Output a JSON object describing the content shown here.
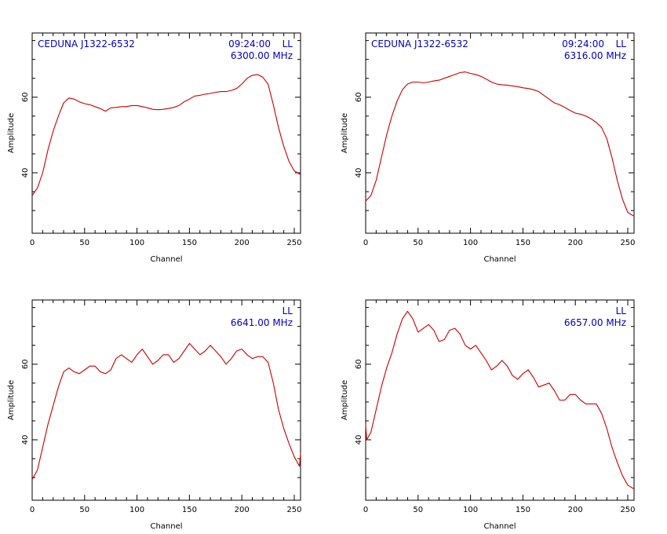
{
  "chart_data": [
    {
      "type": "line",
      "title_left": "CEDUNA J1322-6532",
      "title_time": "09:24:00",
      "polarization": "LL",
      "frequency": "6300.00 MHz",
      "xlabel": "Channel",
      "ylabel": "Amplitude",
      "xlim": [
        0,
        256
      ],
      "ylim": [
        24,
        77
      ],
      "x_ticks": [
        0,
        50,
        100,
        150,
        200,
        250
      ],
      "y_ticks": [
        40,
        60
      ],
      "series": [
        {
          "color": "#cc0000",
          "x": [
            0,
            5,
            10,
            15,
            20,
            25,
            30,
            35,
            40,
            45,
            50,
            55,
            60,
            65,
            70,
            75,
            80,
            85,
            90,
            95,
            100,
            105,
            110,
            115,
            120,
            125,
            130,
            135,
            140,
            145,
            150,
            155,
            160,
            165,
            170,
            175,
            180,
            185,
            190,
            195,
            200,
            205,
            210,
            215,
            220,
            225,
            230,
            235,
            240,
            245,
            250,
            256
          ],
          "y": [
            34,
            36,
            40,
            46,
            51,
            55,
            58.5,
            59.8,
            59.5,
            58.8,
            58.3,
            58,
            57.5,
            57,
            56.3,
            57.2,
            57.3,
            57.5,
            57.5,
            57.8,
            57.8,
            57.5,
            57.2,
            56.8,
            56.7,
            56.8,
            57,
            57.3,
            57.8,
            58.8,
            59.5,
            60.3,
            60.5,
            60.8,
            61,
            61.3,
            61.5,
            61.5,
            61.8,
            62.3,
            63.5,
            65,
            65.8,
            66,
            65.3,
            63.5,
            58,
            52,
            47,
            43,
            40.5,
            39.5
          ]
        }
      ]
    },
    {
      "type": "line",
      "title_left": "CEDUNA J1322-6532",
      "title_time": "09:24:00",
      "polarization": "LL",
      "frequency": "6316.00 MHz",
      "xlabel": "Channel",
      "ylabel": "Amplitude",
      "xlim": [
        0,
        256
      ],
      "ylim": [
        24,
        77
      ],
      "x_ticks": [
        0,
        50,
        100,
        150,
        200,
        250
      ],
      "y_ticks": [
        40,
        60
      ],
      "series": [
        {
          "color": "#cc0000",
          "x": [
            0,
            5,
            10,
            15,
            20,
            25,
            30,
            35,
            40,
            45,
            50,
            55,
            60,
            65,
            70,
            75,
            80,
            85,
            90,
            95,
            100,
            105,
            110,
            115,
            120,
            125,
            130,
            135,
            140,
            145,
            150,
            155,
            160,
            165,
            170,
            175,
            180,
            185,
            190,
            195,
            200,
            205,
            210,
            215,
            220,
            225,
            230,
            235,
            240,
            245,
            250,
            256
          ],
          "y": [
            32.5,
            34,
            38,
            44,
            50,
            55,
            59,
            62,
            63.5,
            64,
            64,
            63.8,
            64,
            64.3,
            64.5,
            65,
            65.5,
            66,
            66.5,
            66.7,
            66.3,
            66,
            65.5,
            64.8,
            64,
            63.5,
            63.3,
            63.2,
            63,
            62.8,
            62.5,
            62.3,
            62,
            61.5,
            60.5,
            59.5,
            58.5,
            58,
            57.3,
            56.5,
            55.8,
            55.5,
            55,
            54.3,
            53.3,
            52,
            49,
            44,
            38,
            33,
            29.5,
            28.5
          ]
        }
      ]
    },
    {
      "type": "line",
      "title_left": "",
      "title_time": "",
      "polarization": "LL",
      "frequency": "6641.00 MHz",
      "xlabel": "Channel",
      "ylabel": "Amplitude",
      "xlim": [
        0,
        256
      ],
      "ylim": [
        24,
        77
      ],
      "x_ticks": [
        0,
        50,
        100,
        150,
        200,
        250
      ],
      "y_ticks": [
        40,
        60
      ],
      "series": [
        {
          "color": "#cc0000",
          "x": [
            0,
            5,
            10,
            15,
            20,
            25,
            30,
            35,
            40,
            45,
            50,
            55,
            60,
            65,
            70,
            75,
            80,
            85,
            90,
            95,
            100,
            105,
            110,
            115,
            120,
            125,
            130,
            135,
            140,
            145,
            150,
            155,
            160,
            165,
            170,
            175,
            180,
            185,
            190,
            195,
            200,
            205,
            210,
            215,
            220,
            225,
            230,
            235,
            240,
            245,
            250,
            255,
            256
          ],
          "y": [
            29.5,
            32,
            38,
            44,
            49,
            54,
            58,
            59,
            58,
            57.5,
            58.5,
            59.5,
            59.5,
            58,
            57.5,
            58.5,
            61.5,
            62.5,
            61.5,
            60.5,
            62.5,
            64,
            62,
            60,
            61,
            62.5,
            62.5,
            60.5,
            61.5,
            63.5,
            65.5,
            64,
            62.5,
            63.5,
            65,
            63.5,
            62,
            60,
            61.5,
            63.5,
            64,
            62.5,
            61.5,
            62,
            62,
            60.5,
            55,
            48,
            43,
            39,
            35.5,
            33,
            36.5
          ]
        }
      ]
    },
    {
      "type": "line",
      "title_left": "",
      "title_time": "",
      "polarization": "LL",
      "frequency": "6657.00 MHz",
      "xlabel": "Channel",
      "ylabel": "Amplitude",
      "xlim": [
        0,
        256
      ],
      "ylim": [
        24,
        77
      ],
      "x_ticks": [
        0,
        50,
        100,
        150,
        200,
        250
      ],
      "y_ticks": [
        40,
        60
      ],
      "series": [
        {
          "color": "#cc0000",
          "x": [
            0,
            1,
            5,
            10,
            15,
            20,
            25,
            30,
            35,
            40,
            45,
            50,
            55,
            60,
            65,
            70,
            75,
            80,
            85,
            90,
            95,
            100,
            105,
            110,
            115,
            120,
            125,
            130,
            135,
            140,
            145,
            150,
            155,
            160,
            165,
            170,
            175,
            180,
            185,
            190,
            195,
            200,
            205,
            210,
            215,
            220,
            225,
            230,
            235,
            240,
            245,
            250,
            256
          ],
          "y": [
            44,
            40,
            42,
            48,
            54,
            59,
            63,
            68,
            72,
            74,
            72,
            68.5,
            69.5,
            70.5,
            69,
            66,
            66.5,
            69,
            69.5,
            68,
            65,
            64,
            65,
            63,
            61,
            58.5,
            59.5,
            61,
            59.5,
            57,
            56,
            57.5,
            58.5,
            56.5,
            54,
            54.5,
            55,
            53,
            50.5,
            50.5,
            52,
            52,
            50.5,
            49.5,
            49.5,
            49.5,
            47,
            43,
            38,
            34,
            30.5,
            28,
            27
          ]
        }
      ]
    }
  ]
}
